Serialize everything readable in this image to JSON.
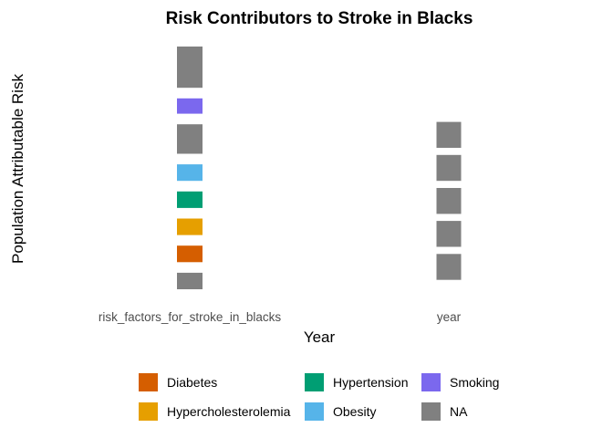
{
  "chart_data": {
    "type": "bar",
    "title": "Risk Contributors to Stroke in Blacks",
    "xlabel": "Year",
    "ylabel": "Population Attributable Risk",
    "categories": [
      "risk_factors_for_stroke_in_blacks",
      "year"
    ],
    "series_colors": {
      "Diabetes": "#D55E00",
      "Hypercholesterolemia": "#E69F00",
      "Hypertension": "#009E73",
      "Obesity": "#56B4E9",
      "Smoking": "#7B68EE",
      "NA": "#808080"
    },
    "stacks": [
      {
        "category": "risk_factors_for_stroke_in_blacks",
        "segments": [
          {
            "series": "NA",
            "start": 0.0,
            "end": 1.4
          },
          {
            "series": "Diabetes",
            "start": 2.3,
            "end": 3.7
          },
          {
            "series": "Hypercholesterolemia",
            "start": 4.6,
            "end": 6.0
          },
          {
            "series": "Hypertension",
            "start": 6.9,
            "end": 8.3
          },
          {
            "series": "Obesity",
            "start": 9.2,
            "end": 10.6
          },
          {
            "series": "NA",
            "start": 11.5,
            "end": 14.0
          },
          {
            "series": "Smoking",
            "start": 14.9,
            "end": 16.2
          },
          {
            "series": "NA",
            "start": 17.1,
            "end": 20.6
          }
        ]
      },
      {
        "category": "year",
        "segments": [
          {
            "series": "NA",
            "start": 0.8,
            "end": 3.0
          },
          {
            "series": "NA",
            "start": 3.6,
            "end": 5.8
          },
          {
            "series": "NA",
            "start": 6.4,
            "end": 8.6
          },
          {
            "series": "NA",
            "start": 9.2,
            "end": 11.4
          },
          {
            "series": "NA",
            "start": 12.0,
            "end": 14.2
          }
        ]
      }
    ],
    "ylim": [
      0,
      20.6
    ],
    "y_ticks_shown": false,
    "grid": false,
    "legend": {
      "position": "bottom",
      "entries": [
        "Diabetes",
        "Hypercholesterolemia",
        "Hypertension",
        "Obesity",
        "Smoking",
        "NA"
      ]
    }
  }
}
